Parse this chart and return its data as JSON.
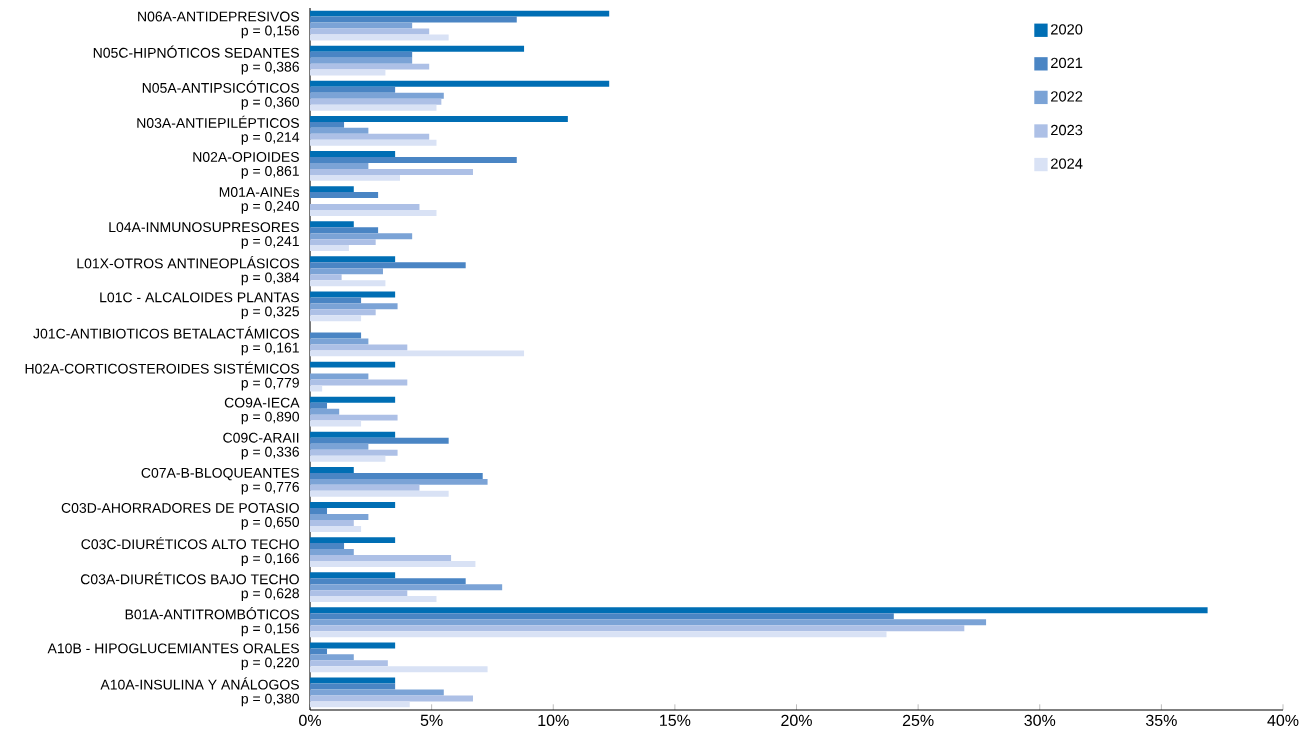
{
  "chart_data": {
    "type": "bar",
    "orientation": "horizontal",
    "categories": [
      "N06A-ANTIDEPRESIVOS",
      "N05C-HIPNÓTICOS SEDANTES",
      "N05A-ANTIPSICÓTICOS",
      "N03A-ANTIEPILÉPTICOS",
      "N02A-OPIOIDES",
      "M01A-AINEs",
      "L04A-INMUNOSUPRESORES",
      "L01X-OTROS ANTINEOPLÁSICOS",
      "L01C - ALCALOIDES PLANTAS",
      "J01C-ANTIBIOTICOS BETALACTÁMICOS",
      "H02A-CORTICOSTEROIDES SISTÉMICOS",
      "CO9A-IECA",
      "C09C-ARAII",
      "C07A-B-BLOQUEANTES",
      "C03D-AHORRADORES DE POTASIO",
      "C03C-DIURÉTICOS ALTO TECHO",
      "C03A-DIURÉTICOS BAJO TECHO",
      "B01A-ANTITROMBÓTICOS",
      "A10B - HIPOGLUCEMIANTES ORALES",
      "A10A-INSULINA Y ANÁLOGOS"
    ],
    "annotations": [
      "p = 0,156",
      "p = 0,386",
      "p = 0,360",
      "p = 0,214",
      "p = 0,861",
      "p = 0,240",
      "p = 0,241",
      "p = 0,384",
      "p = 0,325",
      "p = 0,161",
      "p = 0,779",
      "p = 0,890",
      "p = 0,336",
      "p = 0,776",
      "p = 0,650",
      "p = 0,166",
      "p = 0,628",
      "p = 0,156",
      "p = 0,220",
      "p = 0,380"
    ],
    "series": [
      {
        "name": "2020",
        "color": "#006eb4",
        "values": [
          12.3,
          8.8,
          12.3,
          10.6,
          3.5,
          1.8,
          1.8,
          3.5,
          3.5,
          0,
          3.5,
          3.5,
          3.5,
          1.8,
          3.5,
          3.5,
          3.5,
          36.9,
          3.5,
          3.5
        ]
      },
      {
        "name": "2021",
        "color": "#4a85c4",
        "values": [
          8.5,
          4.2,
          3.5,
          1.4,
          8.5,
          2.8,
          2.8,
          6.4,
          2.1,
          2.1,
          0,
          0.7,
          5.7,
          7.1,
          0.7,
          1.4,
          6.4,
          24.0,
          0.7,
          3.5
        ]
      },
      {
        "name": "2022",
        "color": "#7ba3d6",
        "values": [
          4.2,
          4.2,
          5.5,
          2.4,
          2.4,
          0,
          4.2,
          3.0,
          3.6,
          2.4,
          2.4,
          1.2,
          2.4,
          7.3,
          2.4,
          1.8,
          7.9,
          27.8,
          1.8,
          5.5
        ]
      },
      {
        "name": "2023",
        "color": "#adc0e6",
        "values": [
          4.9,
          4.9,
          5.4,
          4.9,
          6.7,
          4.5,
          2.7,
          1.3,
          2.7,
          4.0,
          4.0,
          3.6,
          3.6,
          4.5,
          1.8,
          5.8,
          4.0,
          26.9,
          3.2,
          6.7
        ]
      },
      {
        "name": "2024",
        "color": "#d9e2f5",
        "values": [
          5.7,
          3.1,
          5.2,
          5.2,
          3.7,
          5.2,
          1.6,
          3.1,
          2.1,
          8.8,
          0.5,
          2.1,
          3.1,
          5.7,
          2.1,
          6.8,
          5.2,
          23.7,
          7.3,
          4.1
        ]
      }
    ],
    "xlim": [
      0,
      40
    ],
    "xticks": [
      {
        "value": 0,
        "label": "0%"
      },
      {
        "value": 5,
        "label": "5%"
      },
      {
        "value": 10,
        "label": "10%"
      },
      {
        "value": 15,
        "label": "15%"
      },
      {
        "value": 20,
        "label": "20%"
      },
      {
        "value": 25,
        "label": "25%"
      },
      {
        "value": 30,
        "label": "30%"
      },
      {
        "value": 35,
        "label": "35%"
      },
      {
        "value": 40,
        "label": "40%"
      }
    ],
    "legend": "top right",
    "grid": false
  }
}
